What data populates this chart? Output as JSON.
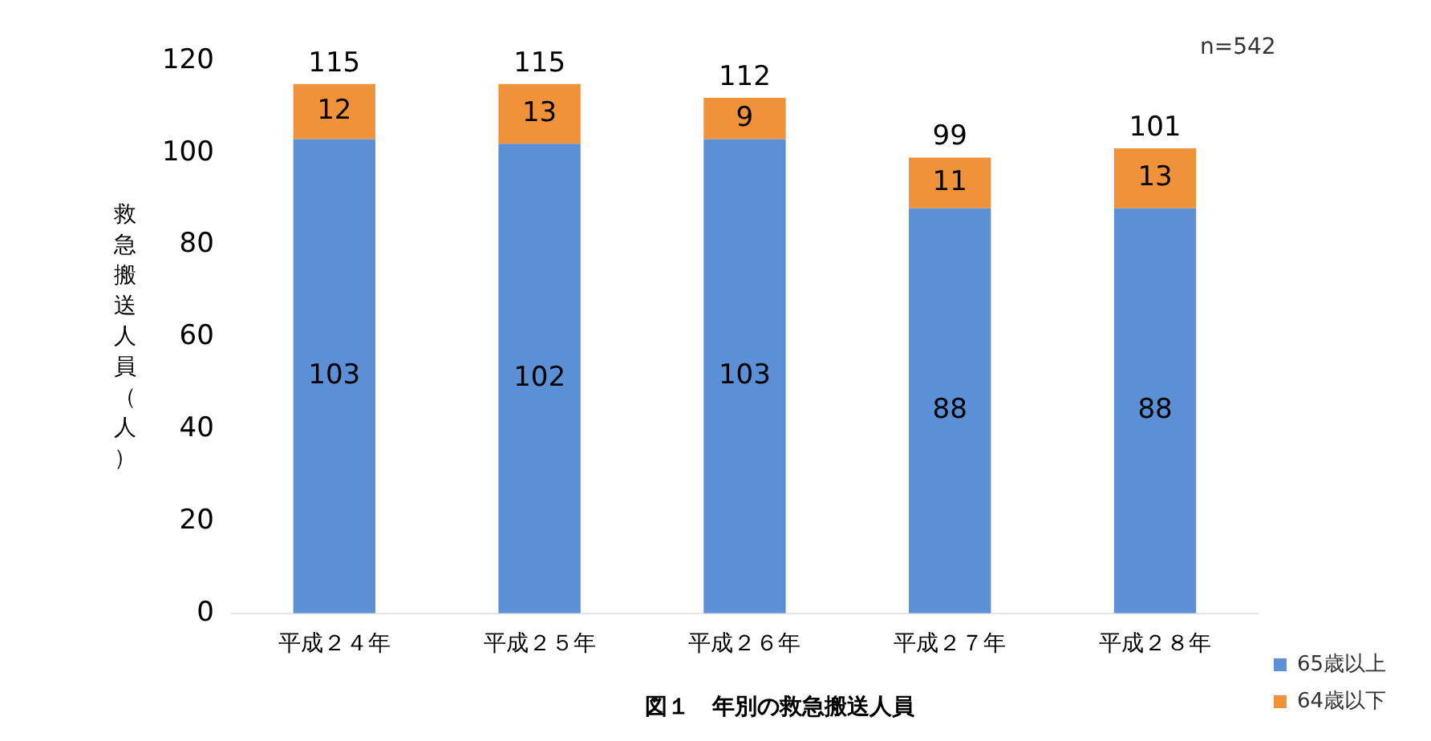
{
  "chart_data": {
    "type": "bar",
    "stacked": true,
    "title": "図１　年別の救急搬送人員",
    "ylabel": "救急搬送人員（人）",
    "categories": [
      "平成２４年",
      "平成２５年",
      "平成２６年",
      "平成２７年",
      "平成２８年"
    ],
    "series": [
      {
        "name": "65歳以上",
        "color": "#5b8fd6",
        "values": [
          103,
          102,
          103,
          88,
          88
        ]
      },
      {
        "name": "64歳以下",
        "color": "#f0923a",
        "values": [
          12,
          13,
          9,
          11,
          13
        ]
      }
    ],
    "totals": [
      "115",
      "115",
      "112",
      "99",
      "101"
    ],
    "data_labels": true,
    "ylim": [
      0,
      120
    ],
    "yticks": [
      0,
      20,
      40,
      60,
      80,
      100,
      120
    ],
    "grid": false,
    "legend": "bottom right",
    "annotations": [
      "n=542"
    ]
  }
}
